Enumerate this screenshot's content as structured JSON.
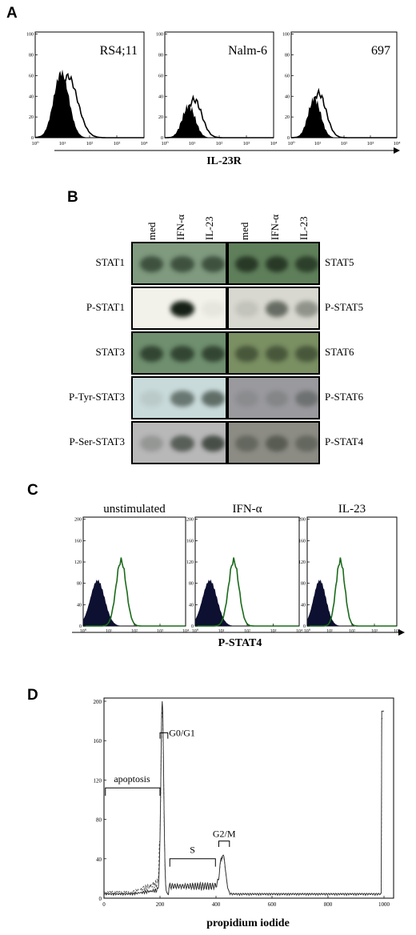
{
  "panel_a": {
    "letter": "A",
    "axis_title": "IL-23R",
    "y_ticks": [
      "0",
      "20",
      "40",
      "60",
      "80",
      "100"
    ],
    "x_ticks": [
      "10⁰",
      "10¹",
      "10²",
      "10³",
      "10⁴"
    ],
    "plots": [
      {
        "label": "RS4;11"
      },
      {
        "label": "Nalm-6"
      },
      {
        "label": "697"
      }
    ]
  },
  "panel_b": {
    "letter": "B",
    "columns": [
      "med",
      "IFN-α",
      "IL-23",
      "med",
      "IFN-α",
      "IL-23"
    ],
    "left_rows": [
      "STAT1",
      "P-STAT1",
      "STAT3",
      "P-Tyr-STAT3",
      "P-Ser-STAT3"
    ],
    "right_rows": [
      "STAT5",
      "P-STAT5",
      "STAT6",
      "P-STAT6",
      "P-STAT4"
    ]
  },
  "panel_c": {
    "letter": "C",
    "axis_title": "P-STAT4",
    "y_ticks": [
      "0",
      "40",
      "80",
      "120",
      "160",
      "200"
    ],
    "x_ticks": [
      "10⁰",
      "10¹",
      "10²",
      "10³",
      "10⁴"
    ],
    "plots": [
      {
        "label": "unstimulated"
      },
      {
        "label": "IFN-α"
      },
      {
        "label": "IL-23"
      }
    ],
    "colors": {
      "filled": "#0d1030",
      "outline": "#1a6a1a"
    }
  },
  "panel_d": {
    "letter": "D",
    "axis_title": "propidium iodide",
    "y_ticks": [
      "0",
      "40",
      "80",
      "120",
      "160",
      "200"
    ],
    "x_ticks": [
      "0",
      "200",
      "400",
      "600",
      "800",
      "1000"
    ],
    "annotations": {
      "g0g1": "G0/G1",
      "apoptosis": "apoptosis",
      "s": "S",
      "g2m": "G2/M"
    }
  }
}
